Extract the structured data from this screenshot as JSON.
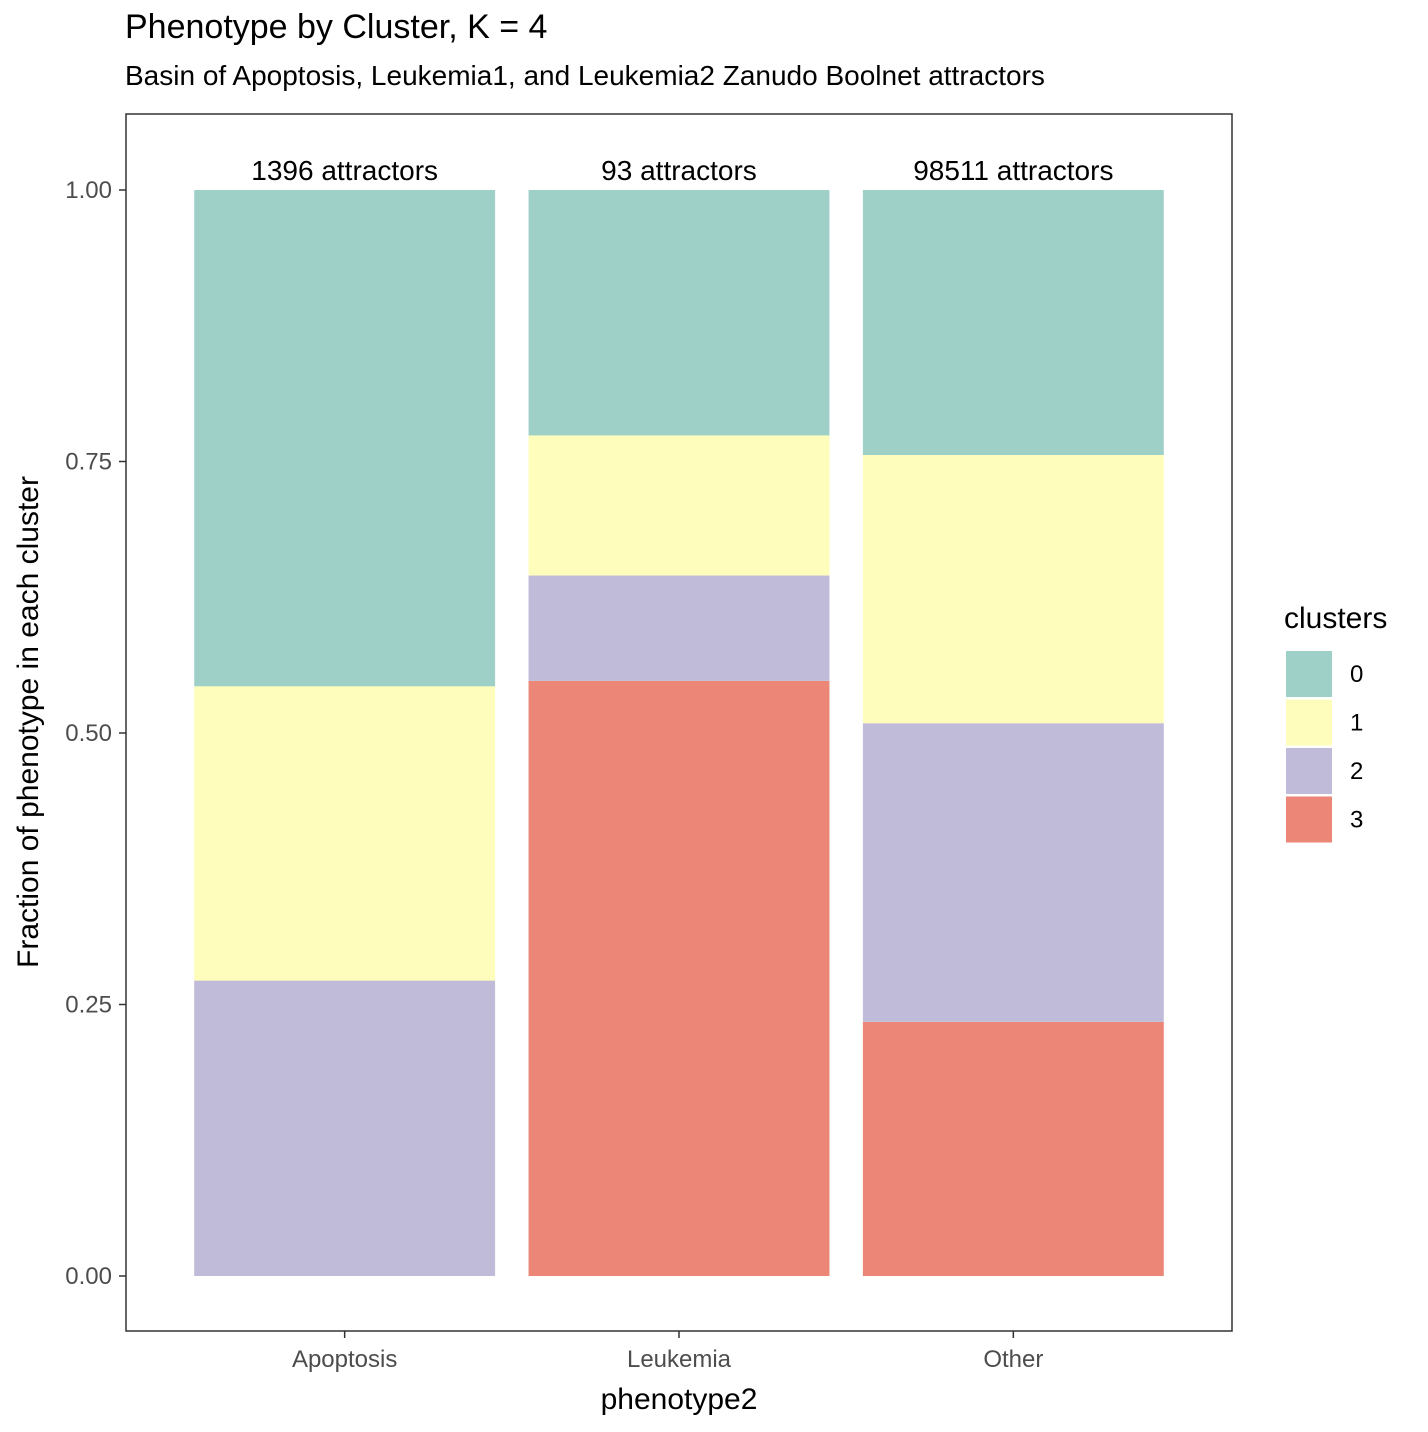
{
  "chart_data": {
    "type": "bar",
    "stacked": true,
    "title": "Phenotype by Cluster, K = 4",
    "subtitle": "Basin of Apoptosis, Leukemia1, and Leukemia2 Zanudo Boolnet attractors",
    "xlabel": "phenotype2",
    "ylabel": "Fraction of phenotype in each cluster",
    "categories": [
      "Apoptosis",
      "Leukemia",
      "Other"
    ],
    "bar_labels": [
      "1396 attractors",
      "93 attractors",
      "98511 attractors"
    ],
    "ylim": [
      -0.05,
      1.07
    ],
    "yticks": [
      0.0,
      0.25,
      0.5,
      0.75,
      1.0
    ],
    "ytick_labels": [
      "0.00",
      "0.25",
      "0.50",
      "0.75",
      "1.00"
    ],
    "legend_title": "clusters",
    "legend_position": "right",
    "grid": false,
    "series": [
      {
        "name": "0",
        "color": "#9ED0C8",
        "values": [
          0.457,
          0.226,
          0.244
        ]
      },
      {
        "name": "1",
        "color": "#FFFDBB",
        "values": [
          0.271,
          0.129,
          0.247
        ]
      },
      {
        "name": "2",
        "color": "#BFBBD8",
        "values": [
          0.272,
          0.097,
          0.275
        ]
      },
      {
        "name": "3",
        "color": "#EC8677",
        "values": [
          0.0,
          0.548,
          0.234
        ]
      }
    ]
  }
}
